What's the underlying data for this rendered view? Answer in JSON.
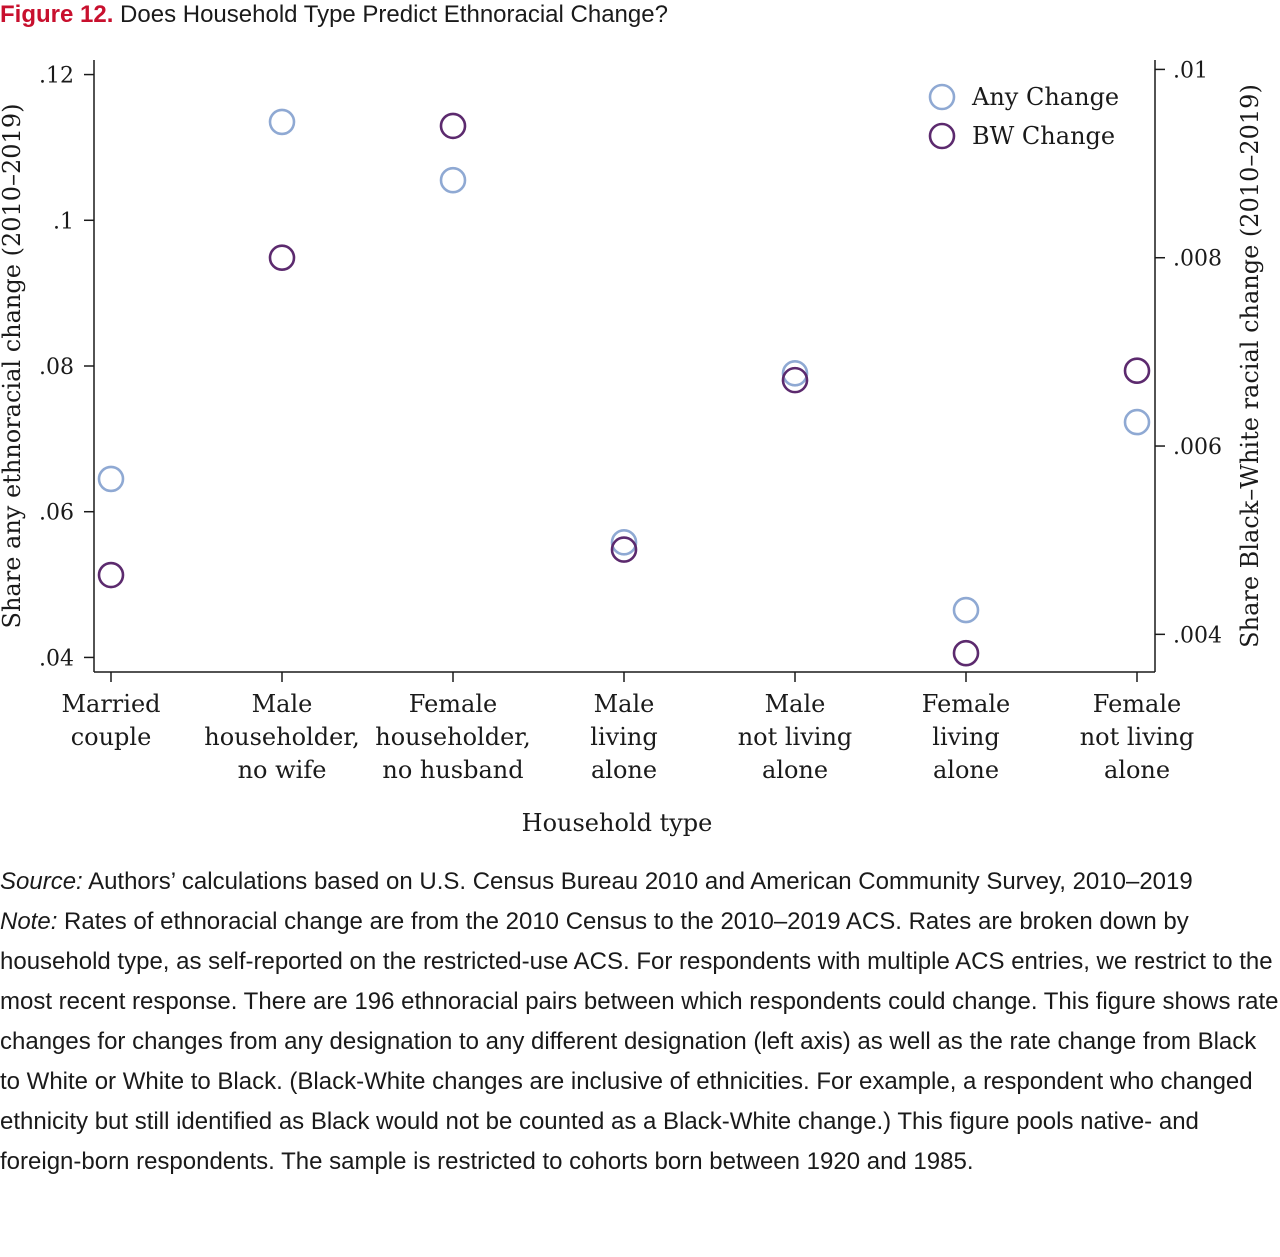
{
  "figure": {
    "label": "Figure 12.",
    "title": "Does Household Type Predict Ethnoracial Change?"
  },
  "chart_data": {
    "type": "scatter",
    "xlabel": "Household type",
    "ylabel_left": "Share any ethnoracial change (2010–2019)",
    "ylabel_right": "Share Black–White racial change (2010–2019)",
    "categories": [
      [
        "Married",
        "couple"
      ],
      [
        "Male",
        "householder,",
        "no wife"
      ],
      [
        "Female",
        "householder,",
        "no husband"
      ],
      [
        "Male",
        "living",
        "alone"
      ],
      [
        "Male",
        "not living",
        "alone"
      ],
      [
        "Female",
        "living",
        "alone"
      ],
      [
        "Female",
        "not living",
        "alone"
      ]
    ],
    "ylim_left": [
      0.038,
      0.122
    ],
    "ylim_right": [
      0.0036,
      0.0101
    ],
    "yticks_left": [
      {
        "value": 0.04,
        "label": ".04"
      },
      {
        "value": 0.06,
        "label": ".06"
      },
      {
        "value": 0.08,
        "label": ".08"
      },
      {
        "value": 0.1,
        "label": ".1"
      },
      {
        "value": 0.12,
        "label": ".12"
      }
    ],
    "yticks_right": [
      {
        "value": 0.004,
        "label": ".004"
      },
      {
        "value": 0.006,
        "label": ".006"
      },
      {
        "value": 0.008,
        "label": ".008"
      },
      {
        "value": 0.01,
        "label": ".01"
      }
    ],
    "legend_position": "top-right",
    "grid": false,
    "series": [
      {
        "name": "Any Change",
        "axis": "left",
        "color": "#8fa9d3",
        "values": [
          0.0645,
          0.1135,
          0.1055,
          0.0558,
          0.079,
          0.0465,
          0.0723
        ]
      },
      {
        "name": "BW Change",
        "axis": "right",
        "color": "#5c2a6e",
        "values": [
          0.00463,
          0.008,
          0.0094,
          0.0049,
          0.0067,
          0.0038,
          0.0068
        ]
      }
    ]
  },
  "notes": {
    "source_label": "Source:",
    "source_text": " Authors’ calculations based on U.S. Census Bureau 2010 and American Community Survey, 2010–2019",
    "note_label": "Note:",
    "note_text": " Rates of ethnoracial change are from the 2010 Census to the 2010–2019 ACS. Rates are broken down by household type, as self-reported on the restricted-use ACS. For respondents with multiple ACS entries, we restrict to the most recent response. There are 196 ethnoracial pairs between which respondents could change. This figure shows rate changes for changes from any designation to any different designation (left axis) as well as the rate change from Black to White or White to Black. (Black-White changes are inclusive of ethnicities. For example, a respondent who changed ethnicity but still identified as Black would not be counted as a Black-White change.) This figure pools native- and foreign-born respondents. The sample is restricted to cohorts born between 1920 and 1985."
  }
}
